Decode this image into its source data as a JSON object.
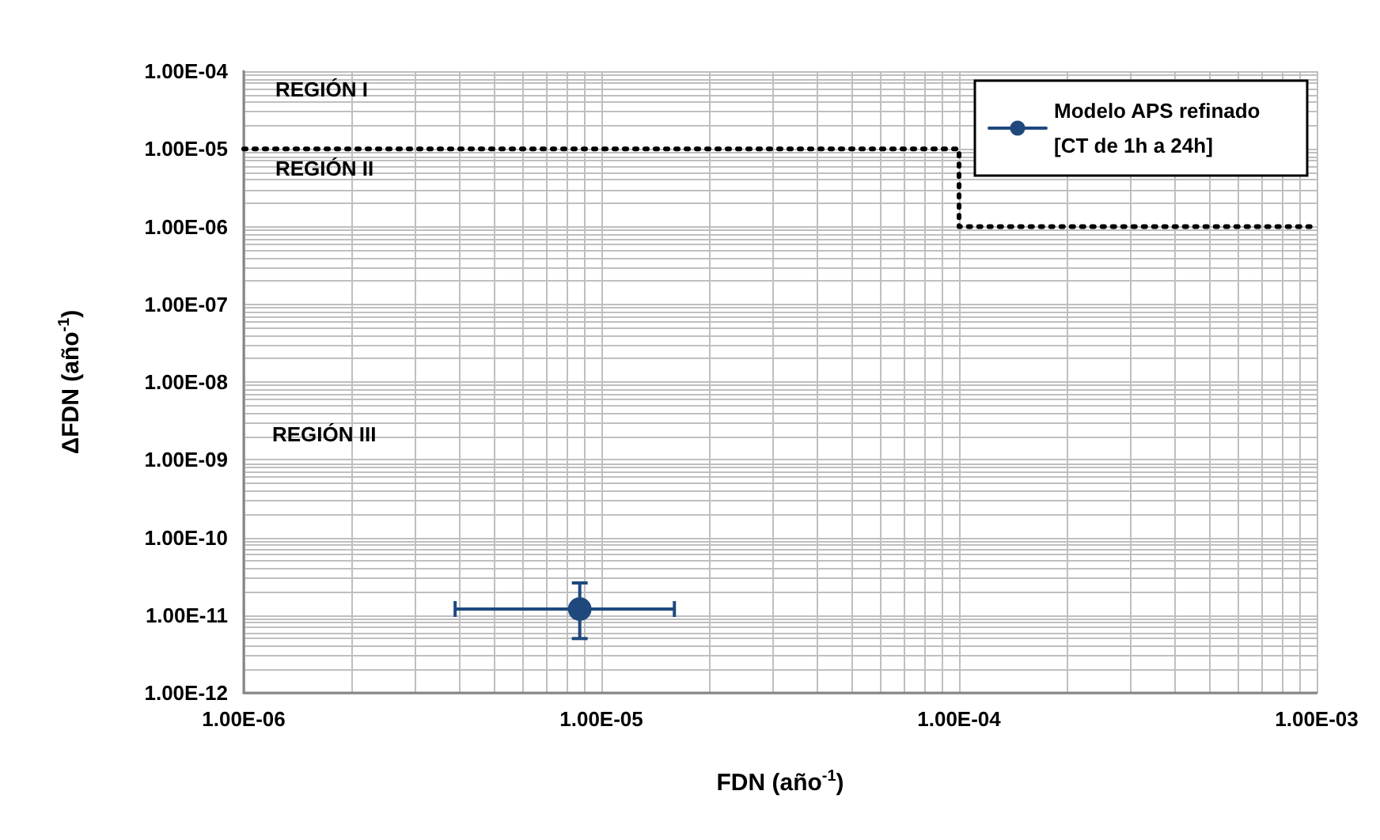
{
  "chart_data": {
    "type": "line",
    "xlabel": "FDN (año$^{-1}$)",
    "ylabel": "ΔFDN (año$^{-1}$)",
    "annotations": [
      "REGIÓN I",
      "REGIÓN II",
      "REGIÓN III"
    ],
    "log": "xy",
    "grid": true,
    "legend": "top right",
    "xlim": [
      1e-06,
      0.001
    ],
    "xticks": [
      {
        "value": 1e-06,
        "label": "1.00E-06"
      },
      {
        "value": 2e-06,
        "label": null
      },
      {
        "value": 3e-06,
        "label": null
      },
      {
        "value": 4e-06,
        "label": null
      },
      {
        "value": 5e-06,
        "label": null
      },
      {
        "value": 6e-06,
        "label": null
      },
      {
        "value": 7e-06,
        "label": null
      },
      {
        "value": 8e-06,
        "label": null
      },
      {
        "value": 9e-06,
        "label": null
      },
      {
        "value": 1e-05,
        "label": "1.00E-05"
      },
      {
        "value": 2e-05,
        "label": null
      },
      {
        "value": 3e-05,
        "label": null
      },
      {
        "value": 4e-05,
        "label": null
      },
      {
        "value": 5e-05,
        "label": null
      },
      {
        "value": 6e-05,
        "label": null
      },
      {
        "value": 7e-05,
        "label": null
      },
      {
        "value": 8e-05,
        "label": null
      },
      {
        "value": 9e-05,
        "label": null
      },
      {
        "value": 0.0001,
        "label": "1.00E-04"
      },
      {
        "value": 0.0002,
        "label": null
      },
      {
        "value": 0.0003,
        "label": null
      },
      {
        "value": 0.0004,
        "label": null
      },
      {
        "value": 0.0005,
        "label": null
      },
      {
        "value": 0.0006,
        "label": null
      },
      {
        "value": 0.0007,
        "label": null
      },
      {
        "value": 0.0008,
        "label": null
      },
      {
        "value": 0.0009,
        "label": null
      },
      {
        "value": 0.001,
        "label": "1.00E-03"
      }
    ],
    "ylim": [
      1e-12,
      0.0001
    ],
    "yticks": [
      {
        "value": 1e-12,
        "label": "1.00E-12"
      },
      {
        "value": 2e-12,
        "label": null
      },
      {
        "value": 3e-12,
        "label": null
      },
      {
        "value": 4e-12,
        "label": null
      },
      {
        "value": 5e-12,
        "label": null
      },
      {
        "value": 6e-12,
        "label": null
      },
      {
        "value": 7e-12,
        "label": null
      },
      {
        "value": 8e-12,
        "label": null
      },
      {
        "value": 9e-12,
        "label": null
      },
      {
        "value": 1e-11,
        "label": "1.00E-11"
      },
      {
        "value": 2e-11,
        "label": null
      },
      {
        "value": 3e-11,
        "label": null
      },
      {
        "value": 4e-11,
        "label": null
      },
      {
        "value": 5e-11,
        "label": null
      },
      {
        "value": 6e-11,
        "label": null
      },
      {
        "value": 7e-11,
        "label": null
      },
      {
        "value": 8e-11,
        "label": null
      },
      {
        "value": 9e-11,
        "label": null
      },
      {
        "value": 1e-10,
        "label": "1.00E-10"
      },
      {
        "value": 2e-10,
        "label": null
      },
      {
        "value": 3e-10,
        "label": null
      },
      {
        "value": 4e-10,
        "label": null
      },
      {
        "value": 5e-10,
        "label": null
      },
      {
        "value": 6e-10,
        "label": null
      },
      {
        "value": 7e-10,
        "label": null
      },
      {
        "value": 8e-10,
        "label": null
      },
      {
        "value": 9e-10,
        "label": null
      },
      {
        "value": 1e-09,
        "label": "1.00E-09"
      },
      {
        "value": 2e-09,
        "label": null
      },
      {
        "value": 3e-09,
        "label": null
      },
      {
        "value": 4e-09,
        "label": null
      },
      {
        "value": 5e-09,
        "label": null
      },
      {
        "value": 6e-09,
        "label": null
      },
      {
        "value": 7e-09,
        "label": null
      },
      {
        "value": 8e-09,
        "label": null
      },
      {
        "value": 9e-09,
        "label": null
      },
      {
        "value": 1e-08,
        "label": "1.00E-08"
      },
      {
        "value": 2e-08,
        "label": null
      },
      {
        "value": 3e-08,
        "label": null
      },
      {
        "value": 4e-08,
        "label": null
      },
      {
        "value": 5e-08,
        "label": null
      },
      {
        "value": 6e-08,
        "label": null
      },
      {
        "value": 7e-08,
        "label": null
      },
      {
        "value": 8e-08,
        "label": null
      },
      {
        "value": 9e-08,
        "label": null
      },
      {
        "value": 1e-07,
        "label": "1.00E-07"
      },
      {
        "value": 2e-07,
        "label": null
      },
      {
        "value": 3e-07,
        "label": null
      },
      {
        "value": 4e-07,
        "label": null
      },
      {
        "value": 5e-07,
        "label": null
      },
      {
        "value": 6e-07,
        "label": null
      },
      {
        "value": 7e-07,
        "label": null
      },
      {
        "value": 8e-07,
        "label": null
      },
      {
        "value": 9e-07,
        "label": null
      },
      {
        "value": 1e-06,
        "label": "1.00E-06"
      },
      {
        "value": 2e-06,
        "label": null
      },
      {
        "value": 3e-06,
        "label": null
      },
      {
        "value": 4e-06,
        "label": null
      },
      {
        "value": 5e-06,
        "label": null
      },
      {
        "value": 6e-06,
        "label": null
      },
      {
        "value": 7e-06,
        "label": null
      },
      {
        "value": 8e-06,
        "label": null
      },
      {
        "value": 9e-06,
        "label": null
      },
      {
        "value": 1e-05,
        "label": "1.00E-05"
      },
      {
        "value": 2e-05,
        "label": null
      },
      {
        "value": 3e-05,
        "label": null
      },
      {
        "value": 4e-05,
        "label": null
      },
      {
        "value": 5e-05,
        "label": null
      },
      {
        "value": 6e-05,
        "label": null
      },
      {
        "value": 7e-05,
        "label": null
      },
      {
        "value": 8e-05,
        "label": null
      },
      {
        "value": 9e-05,
        "label": null
      },
      {
        "value": 0.0001,
        "label": "1.00E-04"
      }
    ],
    "series": [
      {
        "color": "#000000",
        "line_style": "dotted",
        "marker": "none",
        "x": [
          1e-06,
          0.0001,
          0.0001,
          0.0001,
          0.001
        ],
        "values": [
          1e-05,
          1e-05,
          1e-06,
          1e-06,
          1e-06
        ]
      },
      {
        "name": "Modelo APS refinado [CT de 1h a 24h]",
        "color": "#1f497d",
        "marker": "circle",
        "line_style": "solid",
        "x": [
          8.7e-06
        ],
        "values": [
          1.2e-11
        ],
        "errors": [
          [
            5e-12,
            2.6e-11
          ]
        ],
        "xerrors": [
          [
            3.9e-06,
            1.6e-05
          ]
        ]
      }
    ]
  }
}
